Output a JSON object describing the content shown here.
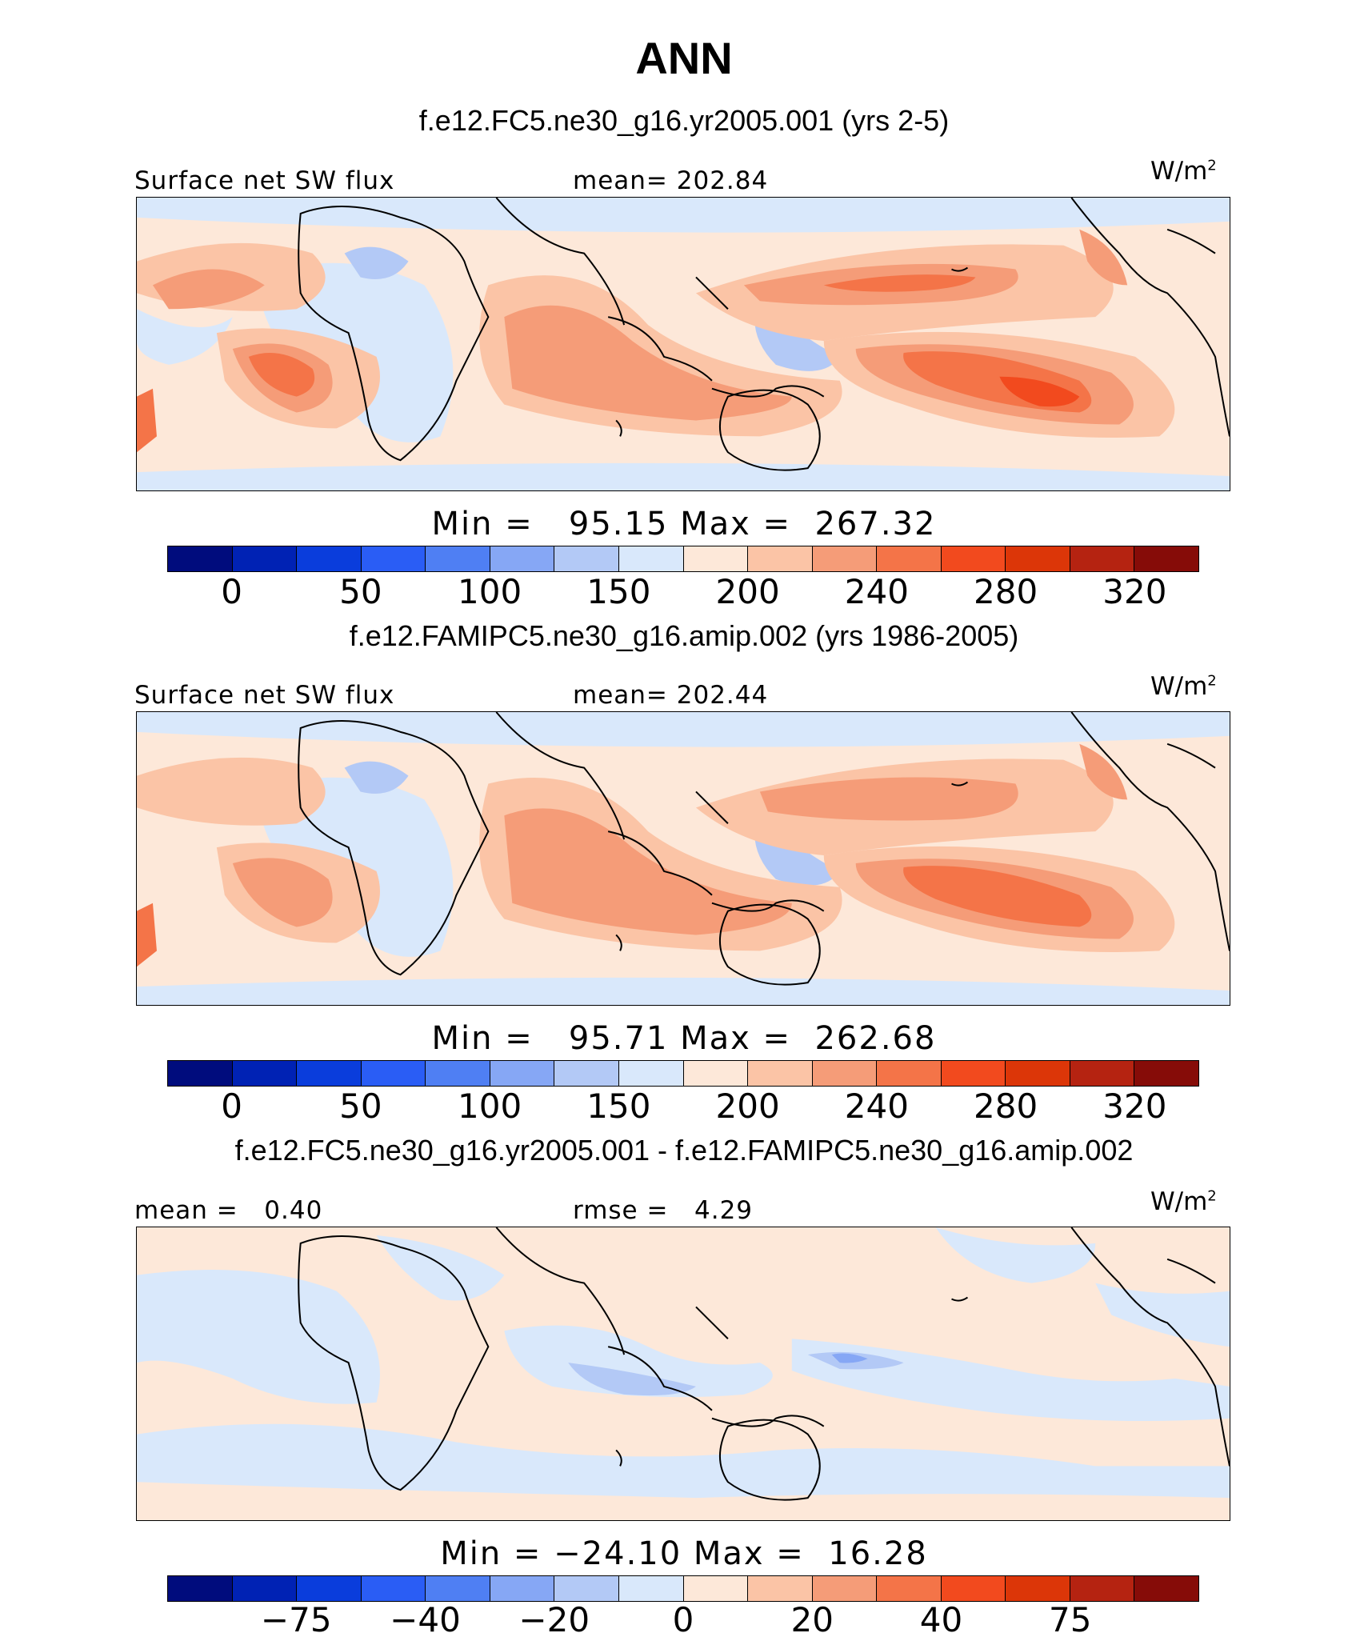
{
  "title": "ANN",
  "units_base": "W/m",
  "units_exp": "2",
  "panels": [
    {
      "case": "f.e12.FC5.ne30_g16.yr2005.001 (yrs 2-5)",
      "left_label": "Surface net SW flux",
      "center_label": "mean= 202.84",
      "minmax": "Min =   95.15 Max =  267.32",
      "ticks": [
        "0",
        "50",
        "100",
        "150",
        "200",
        "240",
        "280",
        "320"
      ]
    },
    {
      "case": "f.e12.FAMIPC5.ne30_g16.amip.002 (yrs 1986-2005)",
      "left_label": "Surface net SW flux",
      "center_label": "mean= 202.44",
      "minmax": "Min =   95.71 Max =  262.68",
      "ticks": [
        "0",
        "50",
        "100",
        "150",
        "200",
        "240",
        "280",
        "320"
      ]
    },
    {
      "case": "f.e12.FC5.ne30_g16.yr2005.001 - f.e12.FAMIPC5.ne30_g16.amip.002",
      "left_label": "mean =   0.40",
      "center_label": "rmse =   4.29",
      "minmax": "Min = −24.10 Max =  16.28",
      "ticks": [
        "−75",
        "−40",
        "−20",
        "0",
        "20",
        "40",
        "75"
      ]
    }
  ],
  "colorbar_colors": [
    "#000c7d",
    "#0022b4",
    "#0a3ddc",
    "#2a5df5",
    "#4f7ff3",
    "#86a7f5",
    "#b3c9f6",
    "#d9e8fb",
    "#fde8d9",
    "#fbc4a6",
    "#f59c78",
    "#f47448",
    "#f24a1e",
    "#dc3608",
    "#b52311",
    "#860c08"
  ]
}
